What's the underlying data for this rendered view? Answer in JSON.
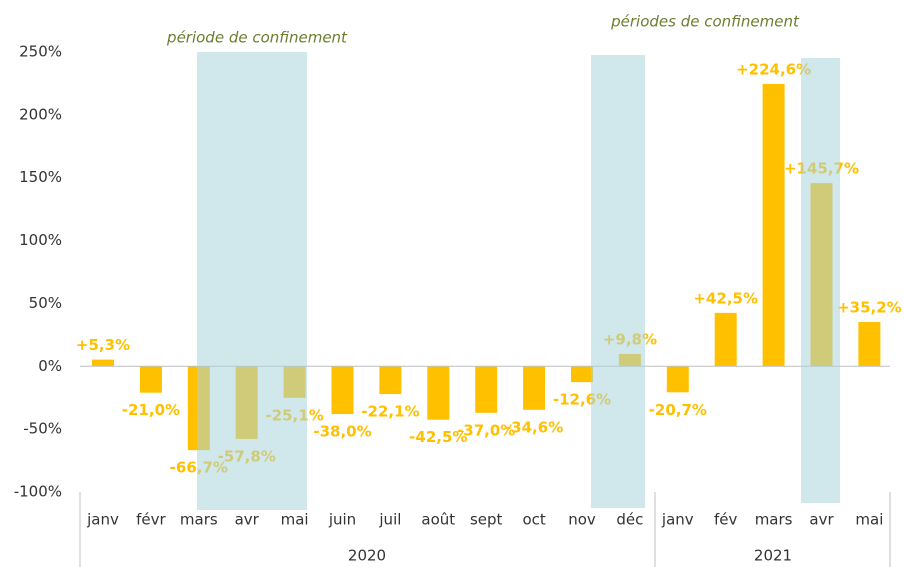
{
  "chart_data": {
    "type": "bar",
    "annotations": [
      "période de confinement",
      "périodes de confinement"
    ],
    "categories": [
      "janv",
      "févr",
      "mars",
      "avr",
      "mai",
      "juin",
      "juil",
      "août",
      "sept",
      "oct",
      "nov",
      "déc",
      "janv",
      "fév",
      "mars",
      "avr",
      "mai"
    ],
    "groups": [
      "2020",
      "2021"
    ],
    "values": [
      5.3,
      -21.0,
      -66.7,
      -57.8,
      -25.1,
      -38.0,
      -22.1,
      -42.5,
      -37.0,
      -34.6,
      -12.6,
      9.8,
      -20.7,
      42.5,
      224.6,
      145.7,
      35.2
    ],
    "value_labels": [
      "+5,3%",
      "-21,0%",
      "-66,7%",
      "-57,8%",
      "-25,1%",
      "-38,0%",
      "-22,1%",
      "-42,5%",
      "-37,0%",
      "-34,6%",
      "-12,6%",
      "+9,8%",
      "-20,7%",
      "+42,5%",
      "+224,6%",
      "+145,7%",
      "+35,2%"
    ],
    "color": "#ffc000",
    "ylim": [
      -100,
      250
    ],
    "yticks": [
      {
        "value": -100,
        "label": "-100%"
      },
      {
        "value": -50,
        "label": "-50%"
      },
      {
        "value": 0,
        "label": "0%"
      },
      {
        "value": 50,
        "label": "50%"
      },
      {
        "value": 100,
        "label": "100%"
      },
      {
        "value": 150,
        "label": "150%"
      },
      {
        "value": 200,
        "label": "200%"
      },
      {
        "value": 250,
        "label": "250%"
      }
    ]
  }
}
